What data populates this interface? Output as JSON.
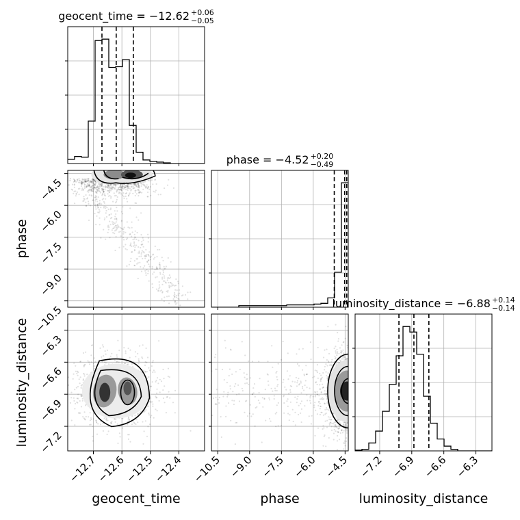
{
  "chart_data": {
    "type": "corner",
    "parameters": [
      "geocent_time",
      "phase",
      "luminosity_distance"
    ],
    "axis_labels": {
      "x": [
        "geocent_time",
        "phase",
        "luminosity_distance"
      ],
      "y": [
        "",
        "phase",
        "luminosity_distance"
      ]
    },
    "titles": [
      {
        "name": "geocent_time",
        "text": "geocent_time = −12.62",
        "sup": "+0.06",
        "sub": "−0.05"
      },
      {
        "name": "phase",
        "text": "phase = −4.52",
        "sup": "+0.20",
        "sub": "−0.49"
      },
      {
        "name": "luminosity_distance",
        "text": "luminosity_distance = −6.88",
        "sup": "+0.14",
        "sub": "−0.14"
      }
    ],
    "ranges": {
      "geocent_time": [
        -12.79,
        -12.31
      ],
      "phase": [
        -10.8,
        -4.35
      ],
      "luminosity_distance": [
        -7.43,
        -6.15
      ]
    },
    "ticks": {
      "geocent_time": {
        "values": [
          -12.7,
          -12.6,
          -12.5,
          -12.4
        ],
        "labels": [
          "−12.7",
          "−12.6",
          "−12.5",
          "−12.4"
        ]
      },
      "phase": {
        "values": [
          -10.5,
          -9.0,
          -7.5,
          -6.0,
          -4.5
        ],
        "labels": [
          "−10.5",
          "−9.0",
          "−7.5",
          "−6.0",
          "−4.5"
        ]
      },
      "luminosity_distance": {
        "values": [
          -7.2,
          -6.9,
          -6.6,
          -6.3
        ],
        "labels": [
          "−7.2",
          "−6.9",
          "−6.6",
          "−6.3"
        ]
      }
    },
    "quantiles": {
      "geocent_time": [
        -12.67,
        -12.62,
        -12.56
      ],
      "phase": [
        -5.01,
        -4.52,
        -4.42
      ],
      "luminosity_distance": [
        -7.02,
        -6.88,
        -6.74
      ]
    },
    "histograms": {
      "geocent_time": {
        "edges": [
          -12.79,
          -12.766,
          -12.742,
          -12.718,
          -12.694,
          -12.67,
          -12.646,
          -12.622,
          -12.598,
          -12.574,
          -12.55,
          -12.526,
          -12.502,
          -12.478,
          -12.454,
          -12.43,
          -12.406,
          -12.382,
          -12.358,
          -12.334,
          -12.31
        ],
        "counts": [
          6,
          10,
          9,
          60,
          174,
          176,
          136,
          137,
          147,
          54,
          16,
          5,
          3,
          2,
          1,
          0,
          0,
          0,
          0,
          0
        ]
      },
      "phase": {
        "edges": [
          -10.8,
          -10.4775,
          -10.155,
          -9.8325,
          -9.51,
          -9.1875,
          -8.865,
          -8.5425,
          -8.22,
          -7.8975,
          -7.575,
          -7.2525,
          -6.93,
          -6.6075,
          -6.285,
          -5.9625,
          -5.64,
          -5.3175,
          -4.995,
          -4.6725,
          -4.35
        ],
        "counts": [
          0,
          0,
          0,
          0,
          2,
          2,
          2,
          2,
          2,
          2,
          2,
          3,
          3,
          3,
          3,
          4,
          5,
          12,
          45,
          160
        ]
      },
      "luminosity_distance": {
        "edges": [
          -7.43,
          -7.366,
          -7.302,
          -7.238,
          -7.174,
          -7.11,
          -7.046,
          -6.982,
          -6.918,
          -6.854,
          -6.79,
          -6.726,
          -6.662,
          -6.598,
          -6.534,
          -6.47,
          -6.406,
          -6.342,
          -6.278,
          -6.214,
          -6.15
        ],
        "counts": [
          1,
          2,
          10,
          25,
          50,
          84,
          120,
          157,
          150,
          122,
          69,
          35,
          15,
          6,
          2,
          0,
          0,
          0,
          0,
          0
        ]
      }
    },
    "density_panels": [
      {
        "x": "geocent_time",
        "y": "phase",
        "modes": [
          [
            -12.64,
            -4.55
          ],
          [
            -12.56,
            -4.55
          ]
        ],
        "tail": [
          [
            -12.72,
            -5.0
          ],
          [
            -12.46,
            -10.3
          ]
        ]
      },
      {
        "x": "geocent_time",
        "y": "luminosity_distance",
        "modes": [
          [
            -12.66,
            -6.87
          ],
          [
            -12.58,
            -6.87
          ]
        ]
      },
      {
        "x": "phase",
        "y": "luminosity_distance",
        "modes": [
          [
            -4.5,
            -6.87
          ]
        ]
      }
    ],
    "grid": true
  }
}
